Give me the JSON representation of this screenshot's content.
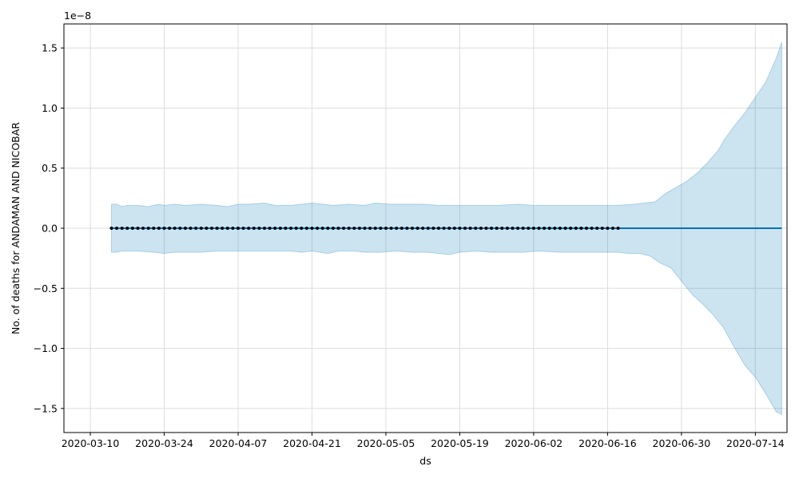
{
  "chart_data": {
    "type": "line",
    "title": "",
    "xlabel": "ds",
    "ylabel": "No. of deaths for ANDAMAN AND NICOBAR",
    "y_scale_label": "1e−8",
    "y_scale_factor": 1e-08,
    "xlim": [
      "2020-03-05",
      "2020-07-20"
    ],
    "ylim": [
      -1.7,
      1.7
    ],
    "x_ticks": [
      "2020-03-10",
      "2020-03-24",
      "2020-04-07",
      "2020-04-21",
      "2020-05-05",
      "2020-05-19",
      "2020-06-02",
      "2020-06-16",
      "2020-06-30",
      "2020-07-14"
    ],
    "y_ticks": [
      -1.5,
      -1.0,
      -0.5,
      0.0,
      0.5,
      1.0,
      1.5
    ],
    "y_tick_labels": [
      "−1.5",
      "−1.0",
      "−0.5",
      "0.0",
      "0.5",
      "1.0",
      "1.5"
    ],
    "grid": true,
    "series": [
      {
        "role": "observed-points",
        "x_start": "2020-03-14",
        "x_end": "2020-06-18",
        "step_days": 1,
        "value": 0.0,
        "color": "#000000"
      },
      {
        "role": "forecast-line",
        "x_start": "2020-03-14",
        "x_end": "2020-07-19",
        "value": 0.0,
        "color": "#0072B2"
      },
      {
        "role": "uncertainty-band",
        "color": "#0072B2",
        "opacity": 0.2,
        "upper": [
          [
            "2020-03-14",
            0.2
          ],
          [
            "2020-03-15",
            0.2
          ],
          [
            "2020-03-16",
            0.18
          ],
          [
            "2020-03-17",
            0.19
          ],
          [
            "2020-03-19",
            0.19
          ],
          [
            "2020-03-21",
            0.18
          ],
          [
            "2020-03-23",
            0.2
          ],
          [
            "2020-03-24",
            0.19
          ],
          [
            "2020-03-26",
            0.2
          ],
          [
            "2020-03-28",
            0.19
          ],
          [
            "2020-03-31",
            0.2
          ],
          [
            "2020-04-03",
            0.19
          ],
          [
            "2020-04-05",
            0.18
          ],
          [
            "2020-04-07",
            0.2
          ],
          [
            "2020-04-09",
            0.2
          ],
          [
            "2020-04-12",
            0.21
          ],
          [
            "2020-04-14",
            0.19
          ],
          [
            "2020-04-17",
            0.19
          ],
          [
            "2020-04-19",
            0.2
          ],
          [
            "2020-04-21",
            0.21
          ],
          [
            "2020-04-25",
            0.19
          ],
          [
            "2020-04-28",
            0.2
          ],
          [
            "2020-05-01",
            0.19
          ],
          [
            "2020-05-03",
            0.21
          ],
          [
            "2020-05-06",
            0.2
          ],
          [
            "2020-05-09",
            0.2
          ],
          [
            "2020-05-12",
            0.2
          ],
          [
            "2020-05-15",
            0.19
          ],
          [
            "2020-05-19",
            0.19
          ],
          [
            "2020-05-23",
            0.19
          ],
          [
            "2020-05-26",
            0.19
          ],
          [
            "2020-05-30",
            0.2
          ],
          [
            "2020-06-02",
            0.19
          ],
          [
            "2020-06-05",
            0.19
          ],
          [
            "2020-06-08",
            0.19
          ],
          [
            "2020-06-11",
            0.19
          ],
          [
            "2020-06-14",
            0.19
          ],
          [
            "2020-06-18",
            0.19
          ],
          [
            "2020-06-21",
            0.2
          ],
          [
            "2020-06-23",
            0.21
          ],
          [
            "2020-06-25",
            0.22
          ],
          [
            "2020-06-27",
            0.29
          ],
          [
            "2020-06-29",
            0.34
          ],
          [
            "2020-07-01",
            0.39
          ],
          [
            "2020-07-03",
            0.46
          ],
          [
            "2020-07-05",
            0.55
          ],
          [
            "2020-07-07",
            0.65
          ],
          [
            "2020-07-08",
            0.73
          ],
          [
            "2020-07-10",
            0.85
          ],
          [
            "2020-07-12",
            0.96
          ],
          [
            "2020-07-14",
            1.09
          ],
          [
            "2020-07-16",
            1.22
          ],
          [
            "2020-07-18",
            1.42
          ],
          [
            "2020-07-19",
            1.55
          ]
        ],
        "lower": [
          [
            "2020-03-14",
            -0.2
          ],
          [
            "2020-03-15",
            -0.2
          ],
          [
            "2020-03-16",
            -0.19
          ],
          [
            "2020-03-17",
            -0.19
          ],
          [
            "2020-03-19",
            -0.19
          ],
          [
            "2020-03-22",
            -0.2
          ],
          [
            "2020-03-24",
            -0.21
          ],
          [
            "2020-03-26",
            -0.2
          ],
          [
            "2020-03-28",
            -0.2
          ],
          [
            "2020-03-31",
            -0.2
          ],
          [
            "2020-04-03",
            -0.19
          ],
          [
            "2020-04-05",
            -0.19
          ],
          [
            "2020-04-07",
            -0.19
          ],
          [
            "2020-04-09",
            -0.19
          ],
          [
            "2020-04-12",
            -0.19
          ],
          [
            "2020-04-14",
            -0.19
          ],
          [
            "2020-04-17",
            -0.19
          ],
          [
            "2020-04-19",
            -0.2
          ],
          [
            "2020-04-21",
            -0.19
          ],
          [
            "2020-04-24",
            -0.21
          ],
          [
            "2020-04-26",
            -0.19
          ],
          [
            "2020-04-29",
            -0.19
          ],
          [
            "2020-05-01",
            -0.2
          ],
          [
            "2020-05-04",
            -0.2
          ],
          [
            "2020-05-07",
            -0.19
          ],
          [
            "2020-05-10",
            -0.2
          ],
          [
            "2020-05-13",
            -0.2
          ],
          [
            "2020-05-17",
            -0.22
          ],
          [
            "2020-05-19",
            -0.2
          ],
          [
            "2020-05-22",
            -0.19
          ],
          [
            "2020-05-25",
            -0.2
          ],
          [
            "2020-05-28",
            -0.2
          ],
          [
            "2020-05-31",
            -0.2
          ],
          [
            "2020-06-03",
            -0.19
          ],
          [
            "2020-06-07",
            -0.2
          ],
          [
            "2020-06-10",
            -0.2
          ],
          [
            "2020-06-14",
            -0.2
          ],
          [
            "2020-06-18",
            -0.2
          ],
          [
            "2020-06-20",
            -0.21
          ],
          [
            "2020-06-22",
            -0.21
          ],
          [
            "2020-06-24",
            -0.23
          ],
          [
            "2020-06-26",
            -0.29
          ],
          [
            "2020-06-28",
            -0.33
          ],
          [
            "2020-06-30",
            -0.44
          ],
          [
            "2020-07-02",
            -0.55
          ],
          [
            "2020-07-04",
            -0.63
          ],
          [
            "2020-07-06",
            -0.72
          ],
          [
            "2020-07-08",
            -0.83
          ],
          [
            "2020-07-10",
            -0.99
          ],
          [
            "2020-07-12",
            -1.14
          ],
          [
            "2020-07-14",
            -1.24
          ],
          [
            "2020-07-16",
            -1.38
          ],
          [
            "2020-07-18",
            -1.53
          ],
          [
            "2020-07-19",
            -1.55
          ]
        ]
      }
    ]
  }
}
